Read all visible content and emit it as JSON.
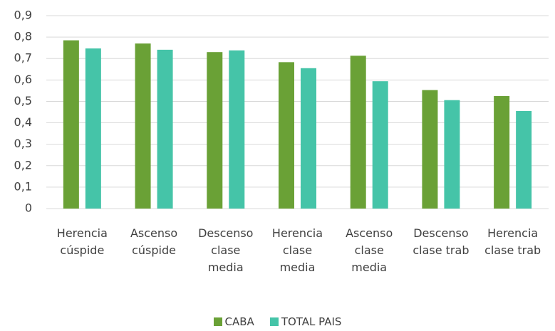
{
  "chart_data": {
    "type": "bar",
    "categories": [
      "Herencia\ncúspide",
      "Ascenso\ncúspide",
      "Descenso\nclase\nmedia",
      "Herencia\nclase\nmedia",
      "Ascenso\nclase\nmedia",
      "Descenso\nclase trab",
      "Herencia\nclase trab"
    ],
    "series": [
      {
        "name": "CABA",
        "color": "#6aa136",
        "values": [
          0.785,
          0.77,
          0.73,
          0.683,
          0.713,
          0.553,
          0.525
        ]
      },
      {
        "name": "TOTAL PAIS",
        "color": "#45c4a8",
        "values": [
          0.747,
          0.741,
          0.738,
          0.655,
          0.594,
          0.506,
          0.455
        ]
      }
    ],
    "ylim": [
      0,
      0.9
    ],
    "yticks": [
      0,
      {
        "value": 0.1,
        "label": "0,1"
      },
      {
        "value": 0.2,
        "label": "0,2"
      },
      {
        "value": 0.3,
        "label": "0,3"
      },
      {
        "value": 0.4,
        "label": "0,4"
      },
      {
        "value": 0.5,
        "label": "0,5"
      },
      {
        "value": 0.6,
        "label": "0,6"
      },
      {
        "value": 0.7,
        "label": "0,7"
      },
      {
        "value": 0.8,
        "label": "0,8"
      },
      {
        "value": 0.9,
        "label": "0,9"
      }
    ],
    "grid": true,
    "legend": "bottom"
  }
}
